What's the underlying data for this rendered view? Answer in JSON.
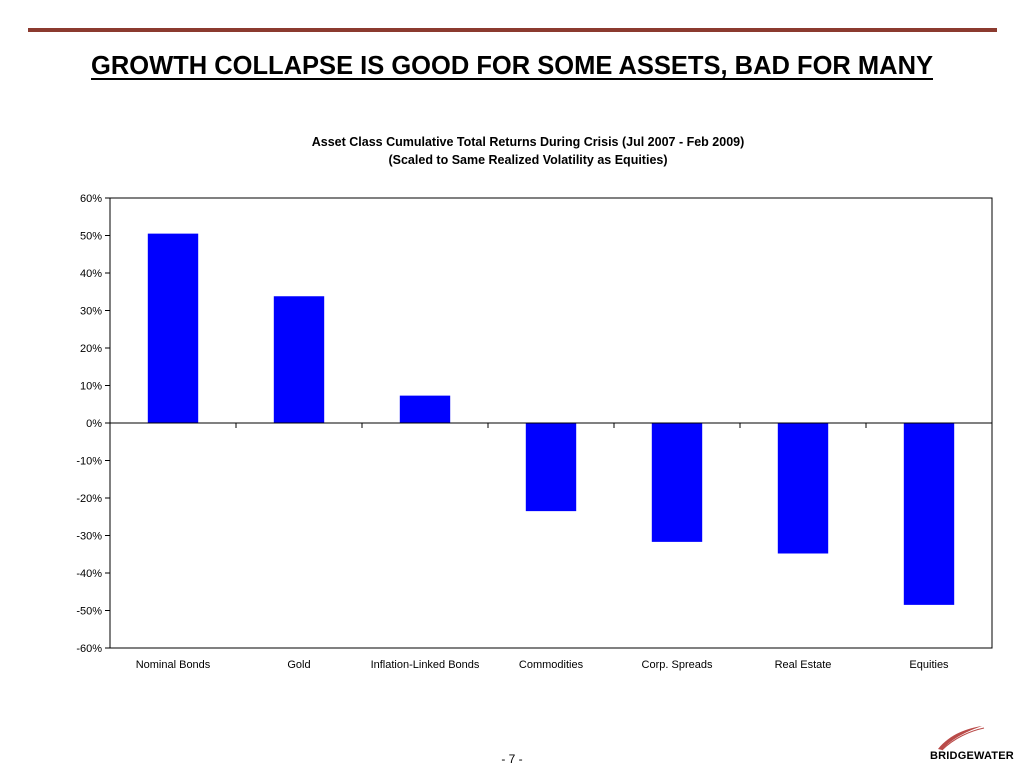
{
  "slide": {
    "title": "GROWTH COLLAPSE IS GOOD FOR SOME ASSETS, BAD FOR MANY",
    "page_number": "- 7 -",
    "logo_text": "BRIDGEWATER"
  },
  "colors": {
    "top_rule": "#8b3a2f",
    "bar": "#0000ff",
    "logo_swoosh": "#b94a48"
  },
  "chart_data": {
    "type": "bar",
    "title": "Asset Class Cumulative Total Returns During Crisis (Jul 2007 - Feb 2009)",
    "subtitle": "(Scaled to Same Realized Volatility as Equities)",
    "categories": [
      "Nominal Bonds",
      "Gold",
      "Inflation-Linked Bonds",
      "Commodities",
      "Corp. Spreads",
      "Real Estate",
      "Equities"
    ],
    "values": [
      50.5,
      33.8,
      7.3,
      -23.5,
      -31.7,
      -34.8,
      -48.5
    ],
    "unit": "%",
    "ylim": [
      -60,
      60
    ],
    "yticks": [
      60,
      50,
      40,
      30,
      20,
      10,
      0,
      -10,
      -20,
      -30,
      -40,
      -50,
      -60
    ],
    "ytick_labels": [
      "60%",
      "50%",
      "40%",
      "30%",
      "20%",
      "10%",
      "0%",
      "-10%",
      "-20%",
      "-30%",
      "-40%",
      "-50%",
      "-60%"
    ],
    "grid": false,
    "legend": "none"
  }
}
